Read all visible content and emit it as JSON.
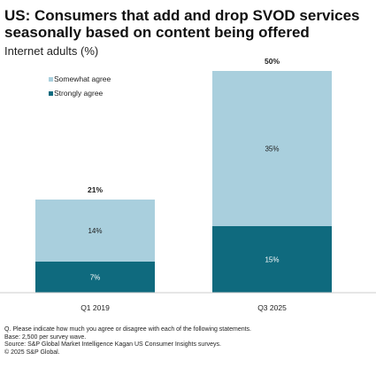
{
  "header": {
    "title": "US: Consumers that add and drop SVOD services seasonally based on content being offered",
    "subtitle": "Internet adults (%)"
  },
  "chart_data": {
    "type": "bar",
    "stacked": true,
    "categories": [
      "Q1 2019",
      "Q3 2025"
    ],
    "series": [
      {
        "name": "Strongly agree",
        "values": [
          7,
          15
        ],
        "labels": [
          "7%",
          "15%"
        ],
        "color": "#0f6a7e"
      },
      {
        "name": "Somewhat agree",
        "values": [
          14,
          35
        ],
        "labels": [
          "14%",
          "35%"
        ],
        "color": "#a9cfdd"
      }
    ],
    "totals": [
      21,
      50
    ],
    "total_labels": [
      "21%",
      "50%"
    ],
    "legend": [
      {
        "name": "Somewhat agree",
        "color": "#a9cfdd"
      },
      {
        "name": "Strongly agree",
        "color": "#0f6a7e"
      }
    ],
    "legend_position": "top-left",
    "ylim": [
      0,
      50
    ],
    "grid": false
  },
  "notes": {
    "question": "Q. Please indicate how much you agree or disagree with each of the following statements.",
    "base": "Base: 2,500 per survey wave.",
    "source": "Source: S&P Global Market Intelligence Kagan US Consumer Insights surveys.",
    "copyright": "© 2025 S&P Global."
  }
}
